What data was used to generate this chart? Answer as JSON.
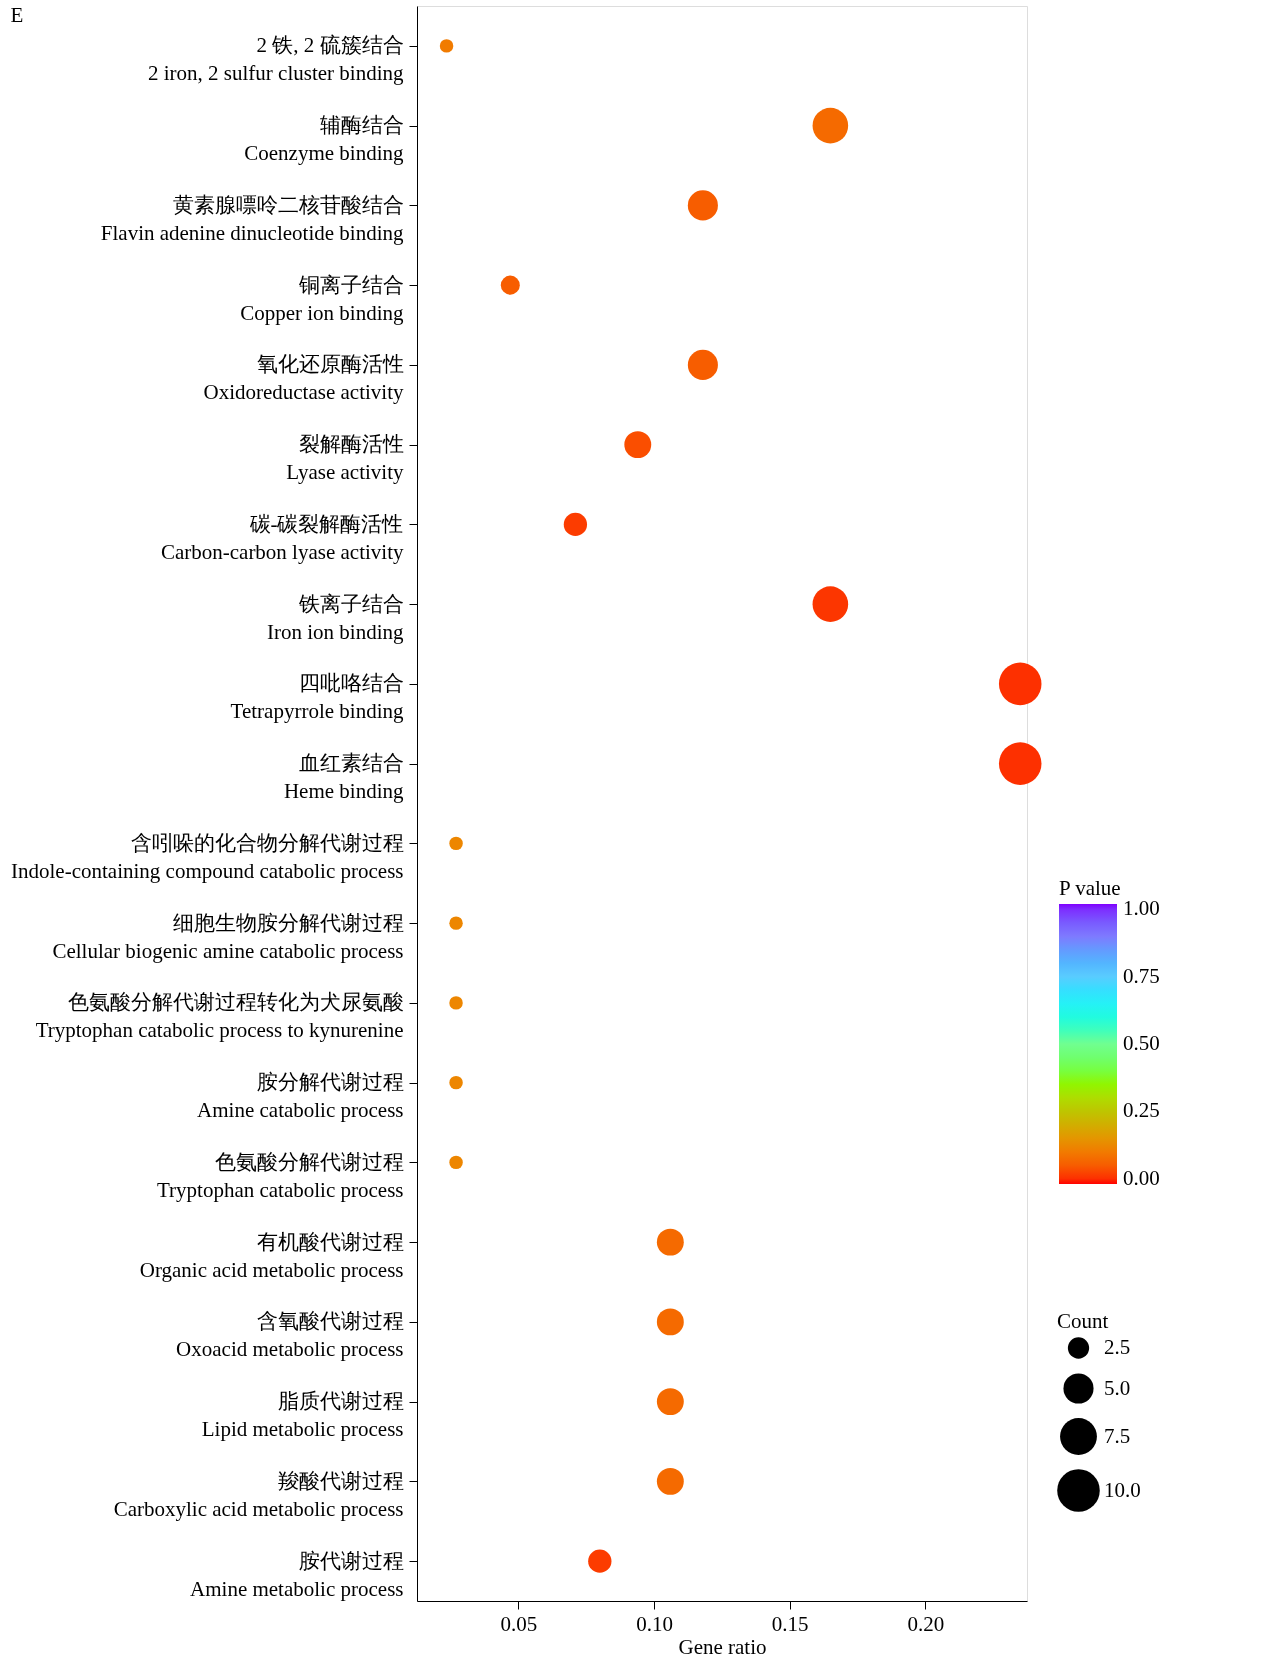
{
  "chart_data": {
    "type": "bubble",
    "orientation": "horizontal",
    "annotations": [
      "E"
    ],
    "xlabel": "Gene ratio",
    "clabel": "P value",
    "legend_title": "Count",
    "categories": [
      "2 铁, 2 硫簇结合\n2 iron, 2 sulfur cluster binding",
      "辅酶结合\nCoenzyme binding",
      "黄素腺嘌呤二核苷酸结合\nFlavin adenine dinucleotide binding",
      "铜离子结合\nCopper ion binding",
      "氧化还原酶活性\nOxidoreductase activity",
      "裂解酶活性\nLyase activity",
      "碳-碳裂解酶活性\nCarbon-carbon lyase activity",
      "铁离子结合\nIron ion binding",
      "四吡咯结合\nTetrapyrrole binding",
      "血红素结合\nHeme binding",
      "含吲哚的化合物分解代谢过程\nIndole-containing compound catabolic process",
      "细胞生物胺分解代谢过程\nCellular biogenic amine catabolic process",
      "色氨酸分解代谢过程转化为犬尿氨酸\nTryptophan catabolic process to kynurenine",
      "胺分解代谢过程\nAmine catabolic process",
      "色氨酸分解代谢过程\nTryptophan catabolic process",
      "有机酸代谢过程\nOrganic acid metabolic process",
      "含氧酸代谢过程\nOxoacid metabolic process",
      "脂质代谢过程\nLipid metabolic process",
      "羧酸代谢过程\nCarboxylic acid metabolic process",
      "胺代谢过程\nAmine metabolic process"
    ],
    "values": [
      0.0235,
      0.165,
      0.118,
      0.047,
      0.118,
      0.094,
      0.071,
      0.165,
      0.235,
      0.235,
      0.027,
      0.027,
      0.027,
      0.027,
      0.027,
      0.106,
      0.106,
      0.106,
      0.106,
      0.08
    ],
    "sizes": [
      1,
      7,
      5,
      2,
      5,
      4,
      3,
      7,
      10,
      10,
      1,
      1,
      1,
      1,
      1,
      4,
      4,
      4,
      4,
      3
    ],
    "cvalues": [
      0.1,
      0.07,
      0.05,
      0.05,
      0.05,
      0.03,
      0.01,
      0.005,
      0.0,
      0.0,
      0.12,
      0.12,
      0.12,
      0.12,
      0.12,
      0.07,
      0.07,
      0.07,
      0.07,
      0.01
    ],
    "xlim": [
      0.0126,
      0.2375
    ],
    "xticks": [
      {
        "value": 0.05,
        "label": "0.05"
      },
      {
        "value": 0.1,
        "label": "0.10"
      },
      {
        "value": 0.15,
        "label": "0.15"
      },
      {
        "value": 0.2,
        "label": "0.20"
      }
    ],
    "clim": [
      -0.02,
      1.02
    ],
    "cticks": [
      {
        "value": 0,
        "label": "0.00"
      },
      {
        "value": 0.25,
        "label": "0.25"
      },
      {
        "value": 0.5,
        "label": "0.50"
      },
      {
        "value": 0.75,
        "label": "0.75"
      },
      {
        "value": 1,
        "label": "1.00"
      }
    ],
    "size_legend": [
      {
        "value": 2.5,
        "label": "2.5"
      },
      {
        "value": 5,
        "label": "5.0"
      },
      {
        "value": 7.5,
        "label": "7.5"
      },
      {
        "value": 10,
        "label": "10.0"
      }
    ],
    "grid": false
  }
}
